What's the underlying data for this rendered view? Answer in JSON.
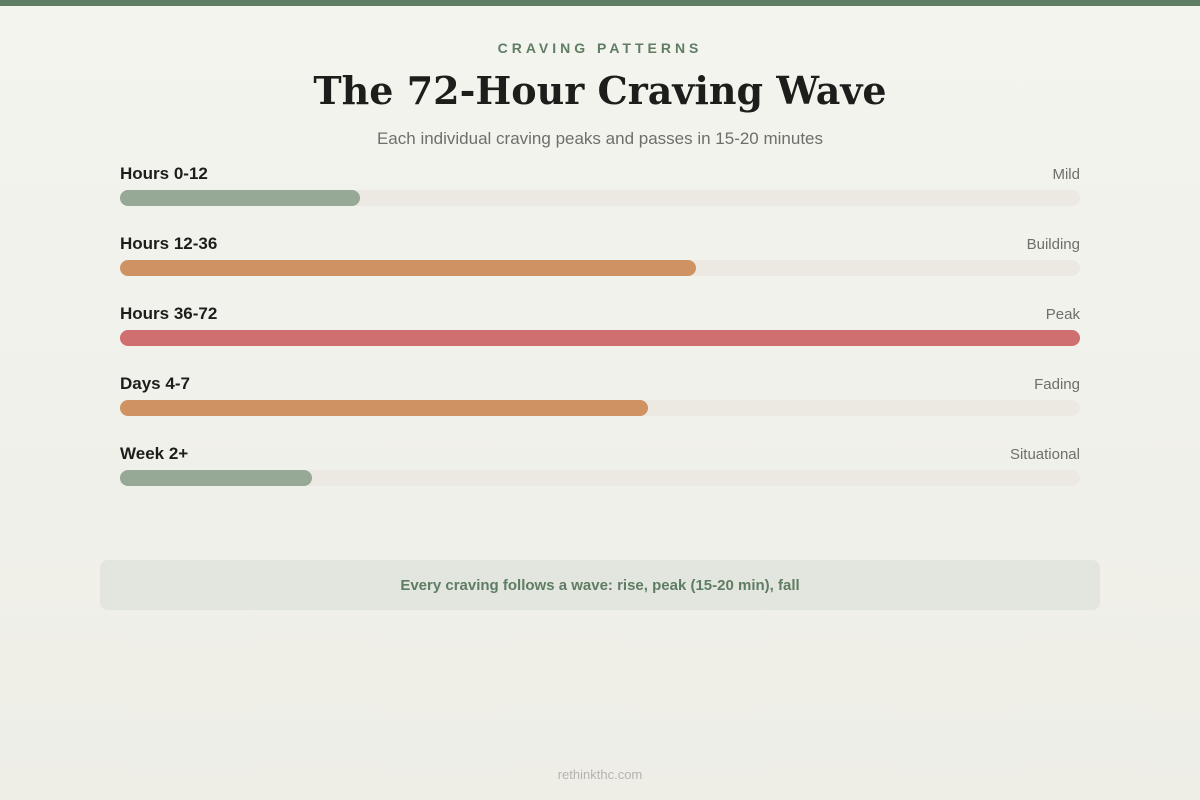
{
  "header": {
    "eyebrow": "CRAVING PATTERNS",
    "title": "The 72-Hour Craving Wave",
    "subtitle": "Each individual craving peaks and passes in 15-20 minutes"
  },
  "chart_data": {
    "type": "bar",
    "orientation": "horizontal",
    "title": "The 72-Hour Craving Wave",
    "categories": [
      "Hours 0-12",
      "Hours 12-36",
      "Hours 36-72",
      "Days 4-7",
      "Week 2+"
    ],
    "statuses": [
      "Mild",
      "Building",
      "Peak",
      "Fading",
      "Situational"
    ],
    "values": [
      25,
      60,
      100,
      55,
      20
    ],
    "colors": [
      "#96a896",
      "#cf9262",
      "#d06f6f",
      "#cf9262",
      "#96a896"
    ],
    "xlim": [
      0,
      100
    ],
    "grid": false,
    "legend": "none"
  },
  "callout": {
    "text": "Every craving follows a wave: rise, peak (15-20 min), fall"
  },
  "footer": {
    "text": "rethinkthc.com"
  },
  "colors": {
    "accent": "#5f7d63",
    "track": "#ebe9e2",
    "callout_bg": "#e2e6df"
  }
}
